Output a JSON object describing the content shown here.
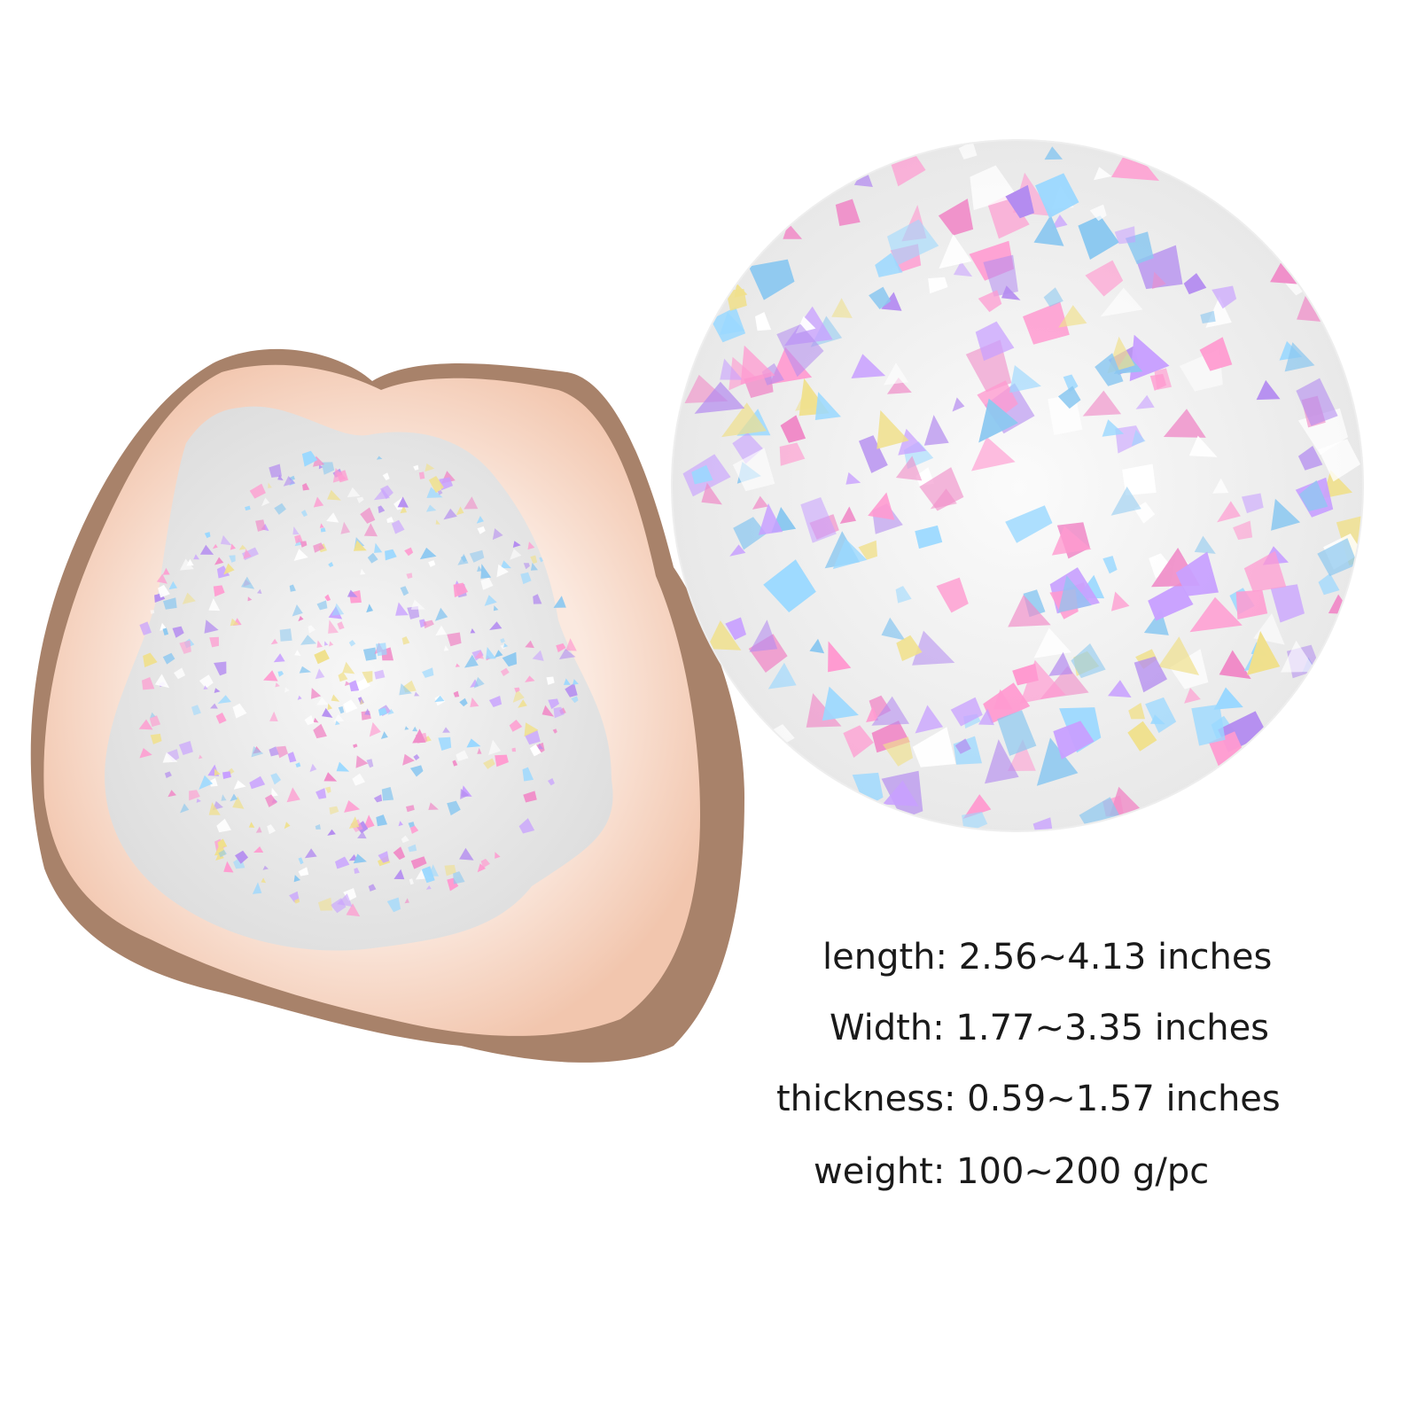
{
  "specs": [
    "length: 2.56~4.13 inches",
    "Width: 1.77~3.35 inches",
    "thickness: 0.59~1.57 inches",
    "weight: 100~200 g/pc"
  ]
}
